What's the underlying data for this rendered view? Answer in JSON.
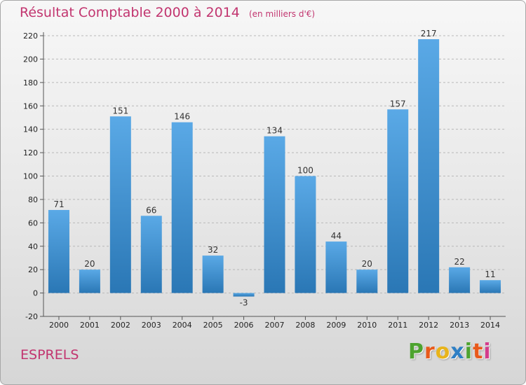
{
  "header": {
    "title": "Résultat Comptable 2000 à 2014",
    "subtitle": "(en milliers d'€)"
  },
  "footer": {
    "commune": "ESPRELS",
    "logo_letters": [
      "P",
      "r",
      "o",
      "x",
      "i",
      "t",
      "i"
    ],
    "logo_colors": [
      "#4da32f",
      "#e85a1b",
      "#e8b41b",
      "#2e7fc4",
      "#4da32f",
      "#e85a1b",
      "#d33c8b"
    ]
  },
  "colors": {
    "accent": "#c2356f",
    "bar_top": "#5aa9e6",
    "bar_bottom": "#2a77b5"
  },
  "chart_data": {
    "type": "bar",
    "title": "Résultat Comptable 2000 à 2014",
    "subtitle": "(en milliers d'€)",
    "categories": [
      "2000",
      "2001",
      "2002",
      "2003",
      "2004",
      "2005",
      "2006",
      "2007",
      "2008",
      "2009",
      "2010",
      "2011",
      "2012",
      "2013",
      "2014"
    ],
    "values": [
      71,
      20,
      151,
      66,
      146,
      32,
      -3,
      134,
      100,
      44,
      20,
      157,
      217,
      22,
      11
    ],
    "data_labels": [
      "71",
      "20",
      "151",
      "66",
      "146",
      "32",
      "-3",
      "134",
      "100",
      "44",
      "20",
      "157",
      "217",
      "22",
      "11"
    ],
    "ylim": [
      -20,
      220
    ],
    "yticks": [
      "-20",
      "0",
      "20",
      "40",
      "60",
      "80",
      "100",
      "120",
      "140",
      "160",
      "180",
      "200",
      "220"
    ],
    "grid": "horizontal dashed",
    "xlabel": "",
    "ylabel": ""
  }
}
